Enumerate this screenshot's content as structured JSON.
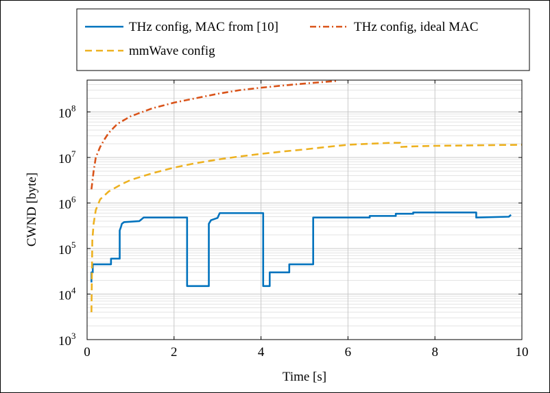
{
  "chart_data": {
    "type": "line",
    "title": "",
    "xlabel": "Time [s]",
    "ylabel": "CWND [byte]",
    "xlim": [
      0,
      10
    ],
    "ylim": [
      1000,
      500000000
    ],
    "yscale": "log",
    "grid": true,
    "legend_placement": "top",
    "x_ticks": [
      0,
      2,
      4,
      6,
      8,
      10
    ],
    "x_tick_labels": [
      "0",
      "2",
      "4",
      "6",
      "8",
      "10"
    ],
    "y_ticks": [
      1000,
      10000,
      100000,
      1000000,
      10000000,
      100000000
    ],
    "y_tick_labels": [
      {
        "base": "10",
        "exp": "3"
      },
      {
        "base": "10",
        "exp": "4"
      },
      {
        "base": "10",
        "exp": "5"
      },
      {
        "base": "10",
        "exp": "6"
      },
      {
        "base": "10",
        "exp": "7"
      },
      {
        "base": "10",
        "exp": "8"
      }
    ],
    "series": [
      {
        "name": "THz config, MAC from [10]",
        "color": "#0072bd",
        "dash": "solid",
        "x": [
          0.1,
          0.1,
          0.13,
          0.13,
          0.55,
          0.55,
          0.75,
          0.75,
          0.78,
          0.8,
          0.85,
          1.2,
          1.3,
          2.3,
          2.3,
          2.8,
          2.8,
          2.85,
          3.0,
          3.05,
          4.05,
          4.05,
          4.2,
          4.2,
          4.65,
          4.65,
          5.2,
          5.2,
          6.5,
          6.5,
          7.1,
          7.1,
          7.5,
          7.5,
          8.95,
          8.95,
          9.7,
          9.75
        ],
        "y": [
          18000,
          30000,
          30000,
          45000,
          45000,
          60000,
          60000,
          250000,
          300000,
          350000,
          380000,
          400000,
          480000,
          480000,
          15000,
          15000,
          350000,
          420000,
          470000,
          600000,
          600000,
          15000,
          15000,
          30000,
          30000,
          45000,
          45000,
          480000,
          480000,
          520000,
          520000,
          580000,
          580000,
          620000,
          620000,
          480000,
          500000,
          550000
        ]
      },
      {
        "name": "THz config, ideal MAC",
        "color": "#d95319",
        "dash": "dashdot",
        "x": [
          0.1,
          0.15,
          0.2,
          0.3,
          0.4,
          0.5,
          0.7,
          1.0,
          1.5,
          2.0,
          2.5,
          3.0,
          3.5,
          4.0,
          4.5,
          5.0,
          5.5,
          5.75
        ],
        "y": [
          2000000,
          5000000,
          10000000,
          17000000,
          25000000,
          35000000,
          55000000,
          80000000,
          120000000,
          160000000,
          200000000,
          250000000,
          300000000,
          340000000,
          380000000,
          420000000,
          460000000,
          480000000
        ]
      },
      {
        "name": "mmWave config",
        "color": "#edb120",
        "dash": "dashed",
        "x": [
          0.1,
          0.12,
          0.15,
          0.2,
          0.3,
          0.5,
          0.8,
          1.0,
          1.5,
          2.0,
          2.5,
          3.0,
          3.5,
          4.0,
          4.5,
          5.0,
          5.5,
          6.0,
          6.5,
          7.0,
          7.2,
          7.2,
          7.5,
          8.0,
          9.0,
          10.0
        ],
        "y": [
          4000,
          150000,
          350000,
          700000,
          1200000,
          1800000,
          2600000,
          3200000,
          4500000,
          6000000,
          7500000,
          9000000,
          10500000,
          12000000,
          13500000,
          15000000,
          17000000,
          19000000,
          20000000,
          21000000,
          21000000,
          17000000,
          17500000,
          18000000,
          18500000,
          19000000
        ]
      }
    ]
  }
}
